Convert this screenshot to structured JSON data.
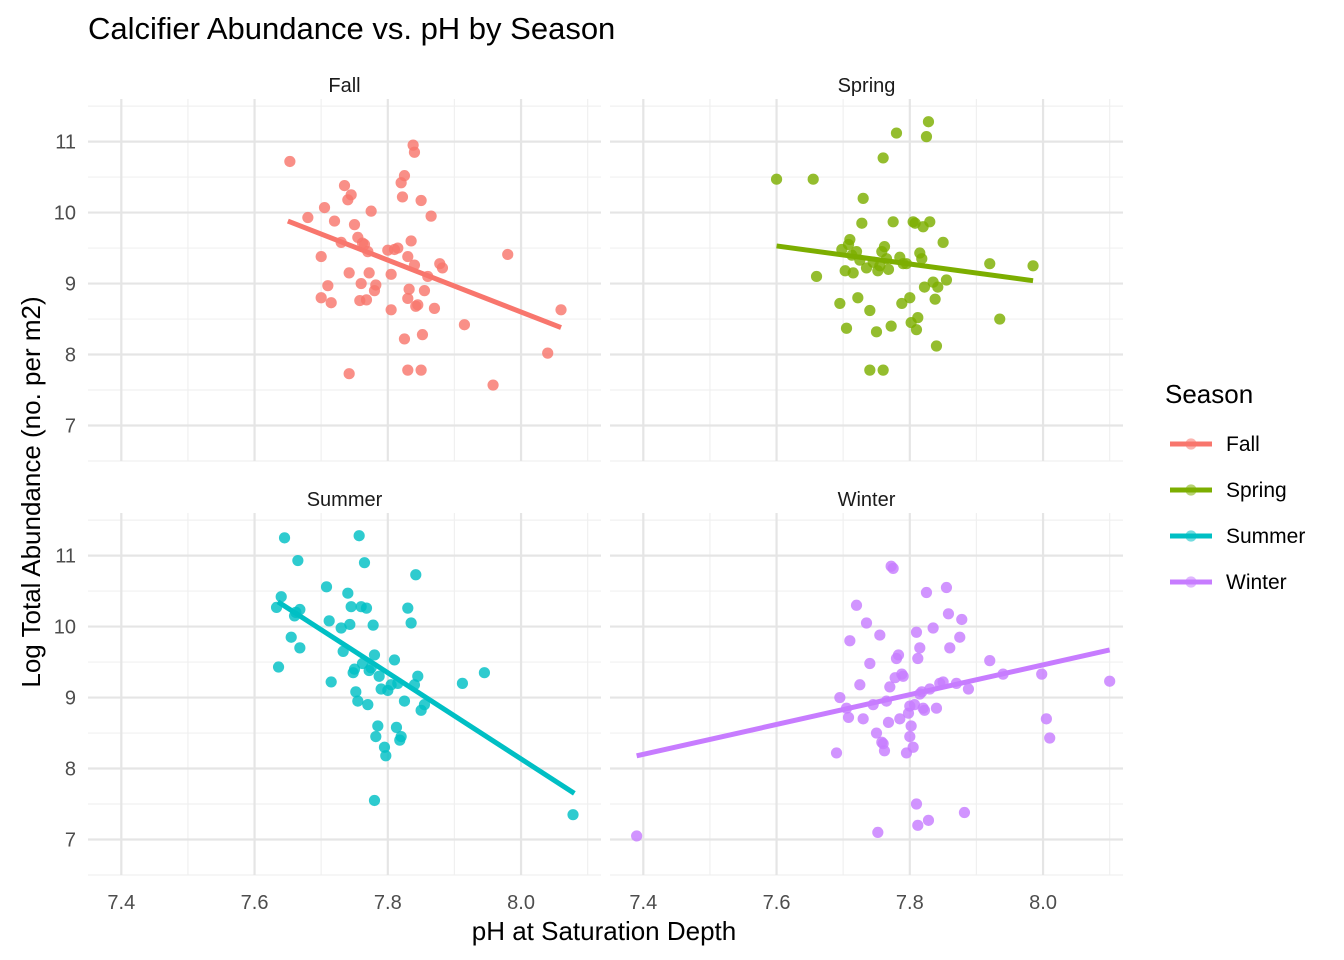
{
  "chart_data": {
    "type": "scatter",
    "title": "Calcifier Abundance vs. pH by Season",
    "xlabel": "pH at Saturation Depth",
    "ylabel": "Log Total Abundance (no. per m2)",
    "xlim": [
      7.35,
      8.12
    ],
    "ylim": [
      6.5,
      11.6
    ],
    "x_ticks": [
      7.4,
      7.6,
      7.8,
      8.0
    ],
    "x_tick_labels": [
      "7.4",
      "7.6",
      "7.8",
      "8.0"
    ],
    "y_ticks": [
      7,
      8,
      9,
      10,
      11
    ],
    "y_tick_labels": [
      "7",
      "8",
      "9",
      "10",
      "11"
    ],
    "grid": true,
    "legend": {
      "title": "Season",
      "position": "right"
    },
    "facets": [
      {
        "name": "Fall",
        "color": "#F8766D",
        "trend": {
          "x": [
            7.65,
            8.06
          ],
          "y": [
            9.88,
            8.38
          ]
        },
        "points": [
          [
            7.653,
            10.72
          ],
          [
            7.68,
            9.93
          ],
          [
            7.7,
            9.38
          ],
          [
            7.705,
            10.07
          ],
          [
            7.71,
            8.97
          ],
          [
            7.715,
            8.73
          ],
          [
            7.72,
            9.88
          ],
          [
            7.73,
            9.58
          ],
          [
            7.735,
            10.38
          ],
          [
            7.74,
            10.18
          ],
          [
            7.745,
            10.25
          ],
          [
            7.75,
            9.83
          ],
          [
            7.755,
            9.65
          ],
          [
            7.76,
            9.0
          ],
          [
            7.762,
            9.57
          ],
          [
            7.765,
            9.55
          ],
          [
            7.77,
            9.45
          ],
          [
            7.775,
            10.02
          ],
          [
            7.78,
            8.9
          ],
          [
            7.782,
            8.98
          ],
          [
            7.742,
            9.15
          ],
          [
            7.758,
            8.76
          ],
          [
            7.768,
            8.77
          ],
          [
            7.772,
            9.15
          ],
          [
            7.7,
            8.8
          ],
          [
            7.742,
            7.73
          ],
          [
            7.8,
            9.47
          ],
          [
            7.805,
            9.13
          ],
          [
            7.81,
            9.48
          ],
          [
            7.815,
            9.5
          ],
          [
            7.82,
            10.42
          ],
          [
            7.822,
            10.22
          ],
          [
            7.825,
            10.52
          ],
          [
            7.83,
            9.38
          ],
          [
            7.832,
            8.92
          ],
          [
            7.835,
            9.6
          ],
          [
            7.838,
            10.95
          ],
          [
            7.84,
            10.85
          ],
          [
            7.842,
            8.68
          ],
          [
            7.845,
            8.7
          ],
          [
            7.85,
            10.17
          ],
          [
            7.855,
            8.9
          ],
          [
            7.86,
            9.1
          ],
          [
            7.865,
            9.95
          ],
          [
            7.87,
            8.65
          ],
          [
            7.878,
            9.28
          ],
          [
            7.882,
            9.22
          ],
          [
            7.83,
            7.78
          ],
          [
            7.85,
            7.78
          ],
          [
            7.825,
            8.22
          ],
          [
            7.852,
            8.28
          ],
          [
            7.805,
            8.63
          ],
          [
            7.915,
            8.42
          ],
          [
            7.958,
            7.57
          ],
          [
            7.98,
            9.41
          ],
          [
            8.04,
            8.02
          ],
          [
            8.06,
            8.63
          ],
          [
            7.83,
            8.79
          ],
          [
            7.84,
            9.26
          ]
        ]
      },
      {
        "name": "Spring",
        "color": "#7CAE00",
        "trend": {
          "x": [
            7.6,
            7.985
          ],
          "y": [
            9.53,
            9.04
          ]
        },
        "points": [
          [
            7.6,
            10.47
          ],
          [
            7.655,
            10.47
          ],
          [
            7.66,
            9.1
          ],
          [
            7.695,
            8.72
          ],
          [
            7.698,
            9.48
          ],
          [
            7.703,
            9.18
          ],
          [
            7.705,
            8.37
          ],
          [
            7.708,
            9.55
          ],
          [
            7.71,
            9.62
          ],
          [
            7.713,
            9.4
          ],
          [
            7.715,
            9.15
          ],
          [
            7.72,
            9.45
          ],
          [
            7.722,
            8.8
          ],
          [
            7.725,
            9.33
          ],
          [
            7.728,
            9.85
          ],
          [
            7.73,
            10.2
          ],
          [
            7.735,
            9.22
          ],
          [
            7.74,
            8.62
          ],
          [
            7.745,
            9.3
          ],
          [
            7.75,
            8.32
          ],
          [
            7.752,
            9.18
          ],
          [
            7.755,
            9.25
          ],
          [
            7.758,
            9.45
          ],
          [
            7.76,
            10.77
          ],
          [
            7.762,
            9.52
          ],
          [
            7.765,
            9.35
          ],
          [
            7.768,
            9.2
          ],
          [
            7.772,
            8.4
          ],
          [
            7.775,
            9.87
          ],
          [
            7.78,
            11.12
          ],
          [
            7.785,
            9.37
          ],
          [
            7.788,
            8.72
          ],
          [
            7.79,
            9.28
          ],
          [
            7.795,
            9.28
          ],
          [
            7.8,
            8.8
          ],
          [
            7.802,
            8.45
          ],
          [
            7.805,
            9.87
          ],
          [
            7.808,
            9.85
          ],
          [
            7.81,
            8.35
          ],
          [
            7.812,
            8.52
          ],
          [
            7.815,
            9.43
          ],
          [
            7.818,
            9.35
          ],
          [
            7.82,
            9.8
          ],
          [
            7.822,
            8.95
          ],
          [
            7.825,
            11.07
          ],
          [
            7.828,
            11.28
          ],
          [
            7.83,
            9.87
          ],
          [
            7.835,
            9.02
          ],
          [
            7.838,
            8.78
          ],
          [
            7.84,
            8.12
          ],
          [
            7.842,
            8.95
          ],
          [
            7.85,
            9.58
          ],
          [
            7.855,
            9.05
          ],
          [
            7.74,
            7.78
          ],
          [
            7.76,
            7.78
          ],
          [
            7.92,
            9.28
          ],
          [
            7.935,
            8.5
          ],
          [
            7.985,
            9.25
          ]
        ]
      },
      {
        "name": "Summer",
        "color": "#00BFC4",
        "trend": {
          "x": [
            7.635,
            8.08
          ],
          "y": [
            10.35,
            7.65
          ]
        },
        "points": [
          [
            7.633,
            10.27
          ],
          [
            7.636,
            9.43
          ],
          [
            7.64,
            10.42
          ],
          [
            7.645,
            11.25
          ],
          [
            7.655,
            9.85
          ],
          [
            7.66,
            10.15
          ],
          [
            7.662,
            10.2
          ],
          [
            7.665,
            10.93
          ],
          [
            7.668,
            10.24
          ],
          [
            7.668,
            9.7
          ],
          [
            7.708,
            10.56
          ],
          [
            7.712,
            10.08
          ],
          [
            7.715,
            9.22
          ],
          [
            7.73,
            9.98
          ],
          [
            7.733,
            9.65
          ],
          [
            7.74,
            10.47
          ],
          [
            7.743,
            10.03
          ],
          [
            7.745,
            10.28
          ],
          [
            7.748,
            9.35
          ],
          [
            7.75,
            9.4
          ],
          [
            7.752,
            9.08
          ],
          [
            7.755,
            8.95
          ],
          [
            7.757,
            11.28
          ],
          [
            7.76,
            10.28
          ],
          [
            7.762,
            9.48
          ],
          [
            7.765,
            10.9
          ],
          [
            7.768,
            10.26
          ],
          [
            7.77,
            8.9
          ],
          [
            7.772,
            9.38
          ],
          [
            7.775,
            9.42
          ],
          [
            7.778,
            10.02
          ],
          [
            7.78,
            9.6
          ],
          [
            7.782,
            8.45
          ],
          [
            7.785,
            8.6
          ],
          [
            7.787,
            9.3
          ],
          [
            7.79,
            9.12
          ],
          [
            7.795,
            8.3
          ],
          [
            7.797,
            8.18
          ],
          [
            7.8,
            9.1
          ],
          [
            7.805,
            9.18
          ],
          [
            7.81,
            9.53
          ],
          [
            7.813,
            8.58
          ],
          [
            7.815,
            9.2
          ],
          [
            7.818,
            8.4
          ],
          [
            7.82,
            8.45
          ],
          [
            7.825,
            8.95
          ],
          [
            7.83,
            10.26
          ],
          [
            7.835,
            10.05
          ],
          [
            7.84,
            9.18
          ],
          [
            7.842,
            10.73
          ],
          [
            7.845,
            9.3
          ],
          [
            7.85,
            8.82
          ],
          [
            7.855,
            8.9
          ],
          [
            7.78,
            7.55
          ],
          [
            7.912,
            9.2
          ],
          [
            7.945,
            9.35
          ],
          [
            8.078,
            7.35
          ]
        ]
      },
      {
        "name": "Winter",
        "color": "#C77CFF",
        "trend": {
          "x": [
            7.39,
            8.1
          ],
          "y": [
            8.18,
            9.67
          ]
        },
        "points": [
          [
            7.39,
            7.05
          ],
          [
            7.69,
            8.22
          ],
          [
            7.695,
            9.0
          ],
          [
            7.705,
            8.85
          ],
          [
            7.708,
            8.72
          ],
          [
            7.71,
            9.8
          ],
          [
            7.72,
            10.3
          ],
          [
            7.725,
            9.18
          ],
          [
            7.73,
            8.7
          ],
          [
            7.735,
            10.05
          ],
          [
            7.74,
            9.48
          ],
          [
            7.745,
            8.9
          ],
          [
            7.75,
            8.5
          ],
          [
            7.752,
            7.1
          ],
          [
            7.755,
            9.88
          ],
          [
            7.758,
            8.37
          ],
          [
            7.76,
            8.35
          ],
          [
            7.762,
            8.25
          ],
          [
            7.765,
            8.95
          ],
          [
            7.768,
            8.65
          ],
          [
            7.77,
            9.15
          ],
          [
            7.772,
            10.85
          ],
          [
            7.775,
            10.82
          ],
          [
            7.778,
            9.28
          ],
          [
            7.78,
            9.55
          ],
          [
            7.783,
            9.6
          ],
          [
            7.785,
            8.7
          ],
          [
            7.788,
            9.33
          ],
          [
            7.79,
            9.3
          ],
          [
            7.795,
            8.22
          ],
          [
            7.798,
            8.78
          ],
          [
            7.8,
            8.45
          ],
          [
            7.802,
            8.6
          ],
          [
            7.805,
            8.3
          ],
          [
            7.807,
            8.9
          ],
          [
            7.81,
            9.92
          ],
          [
            7.812,
            9.55
          ],
          [
            7.815,
            9.7
          ],
          [
            7.818,
            9.08
          ],
          [
            7.82,
            8.85
          ],
          [
            7.822,
            8.82
          ],
          [
            7.825,
            10.48
          ],
          [
            7.83,
            9.12
          ],
          [
            7.835,
            9.98
          ],
          [
            7.84,
            8.85
          ],
          [
            7.845,
            9.2
          ],
          [
            7.85,
            9.22
          ],
          [
            7.855,
            10.55
          ],
          [
            7.858,
            10.18
          ],
          [
            7.86,
            9.7
          ],
          [
            7.87,
            9.2
          ],
          [
            7.875,
            9.85
          ],
          [
            7.878,
            10.1
          ],
          [
            7.882,
            7.38
          ],
          [
            7.888,
            9.12
          ],
          [
            7.81,
            7.5
          ],
          [
            7.812,
            7.2
          ],
          [
            7.828,
            7.27
          ],
          [
            7.92,
            9.52
          ],
          [
            7.94,
            9.33
          ],
          [
            7.998,
            9.33
          ],
          [
            8.005,
            8.7
          ],
          [
            8.01,
            8.43
          ],
          [
            8.1,
            9.23
          ],
          [
            7.8,
            8.88
          ],
          [
            7.815,
            9.05
          ]
        ]
      }
    ]
  }
}
